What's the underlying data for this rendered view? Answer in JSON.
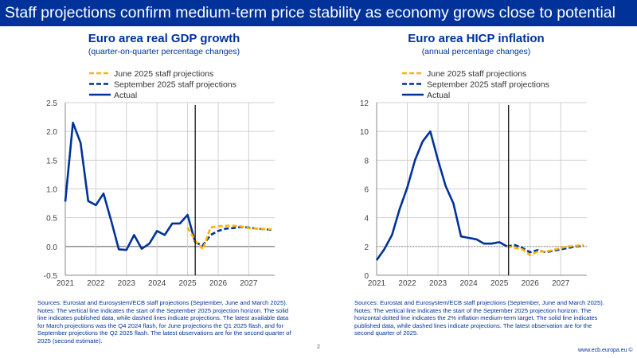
{
  "slide": {
    "title": "Staff projections confirm medium-term price stability as economy grows close to potential",
    "page_number": "2",
    "url": "www.ecb.europa.eu ©"
  },
  "colors": {
    "brand": "#003299",
    "june": "#FFB400",
    "september": "#003299",
    "actual": "#003299"
  },
  "chart_data": [
    {
      "type": "line",
      "title": "Euro area real GDP growth",
      "subtitle": "(quarter-on-quarter percentage changes)",
      "xlim": [
        2021,
        2027.85
      ],
      "ylim": [
        -0.5,
        2.5
      ],
      "yticks": [
        "-0.5",
        "0.0",
        "0.5",
        "1.0",
        "1.5",
        "2.0",
        "2.5"
      ],
      "ytick_values": [
        -0.5,
        0,
        0.5,
        1,
        1.5,
        2,
        2.5
      ],
      "xticks": [
        "2021",
        "2022",
        "2023",
        "2024",
        "2025",
        "2026",
        "2027"
      ],
      "grid": true,
      "legend": "top",
      "vertical_line_x": 2025.25,
      "horizontal_line_y": null,
      "series": [
        {
          "name": "June 2025 staff projections",
          "style": "dashed",
          "color": "#FFB400",
          "start": 2025.0,
          "values": [
            0.33,
            0.1,
            -0.05,
            0.33,
            0.35,
            0.36,
            0.36,
            0.35,
            0.32,
            0.31,
            0.3,
            0.3
          ]
        },
        {
          "name": "September 2025 staff projections",
          "style": "dashed",
          "color": "#003299",
          "start": 2025.25,
          "values": [
            0.07,
            0.02,
            0.2,
            0.27,
            0.31,
            0.32,
            0.34,
            0.33,
            0.31,
            0.3,
            0.29
          ]
        },
        {
          "name": "Actual",
          "style": "solid",
          "color": "#003299",
          "start": 2021.0,
          "values": [
            0.78,
            2.15,
            1.8,
            0.79,
            0.72,
            0.92,
            0.45,
            -0.05,
            -0.06,
            0.2,
            -0.04,
            0.05,
            0.27,
            0.2,
            0.4,
            0.4,
            0.55,
            0.07
          ]
        }
      ],
      "notes": "Sources: Eurostat and Eurosystem/ECB staff projections (September, June and March 2025).\nNotes: The vertical line indicates the start of the September 2025 projection horizon. The solid line indicates published data, while dashed lines indicate projections. The latest available data for March projections was the Q4 2024 flash, for June projections the Q1 2025 flash, and for September projections the Q2 2025 flash. The latest observations are for the second quarter of 2025 (second estimate)."
    },
    {
      "type": "line",
      "title": "Euro area HICP inflation",
      "subtitle": "(annual percentage changes)",
      "xlim": [
        2021,
        2027.85
      ],
      "ylim": [
        0,
        12
      ],
      "yticks": [
        "0",
        "2",
        "4",
        "6",
        "8",
        "10",
        "12"
      ],
      "ytick_values": [
        0,
        2,
        4,
        6,
        8,
        10,
        12
      ],
      "xticks": [
        "2021",
        "2022",
        "2023",
        "2024",
        "2025",
        "2026",
        "2027"
      ],
      "grid": true,
      "legend": "top",
      "vertical_line_x": 2025.3,
      "horizontal_line_y": 2,
      "series": [
        {
          "name": "June 2025 staff projections",
          "style": "dashed",
          "color": "#FFB400",
          "start": 2025.25,
          "values": [
            2.0,
            1.9,
            1.8,
            1.4,
            1.65,
            1.65,
            1.75,
            1.9,
            2.0,
            2.05,
            2.1
          ]
        },
        {
          "name": "September 2025 staff projections",
          "style": "dashed",
          "color": "#003299",
          "start": 2025.25,
          "values": [
            2.0,
            2.1,
            1.9,
            1.6,
            1.75,
            1.6,
            1.7,
            1.8,
            1.9,
            2.0,
            2.05
          ]
        },
        {
          "name": "Actual",
          "style": "solid",
          "color": "#003299",
          "start": 2021.0,
          "values": [
            1.05,
            1.8,
            2.8,
            4.6,
            6.1,
            8.0,
            9.3,
            10.0,
            8.0,
            6.2,
            5.0,
            2.7,
            2.6,
            2.5,
            2.2,
            2.2,
            2.3,
            2.0
          ]
        }
      ],
      "notes": "Sources: Eurostat and Eurosystem/ECB staff projections (September, June and March 2025).\nNotes: The vertical line indicates the start of the September 2025 projection horizon. The horizontal dotted line indicates the 2% inflation medium-term target. The solid line indicates published data, while dashed lines indicate projections. The latest observation are for the second quarter of 2025."
    }
  ]
}
